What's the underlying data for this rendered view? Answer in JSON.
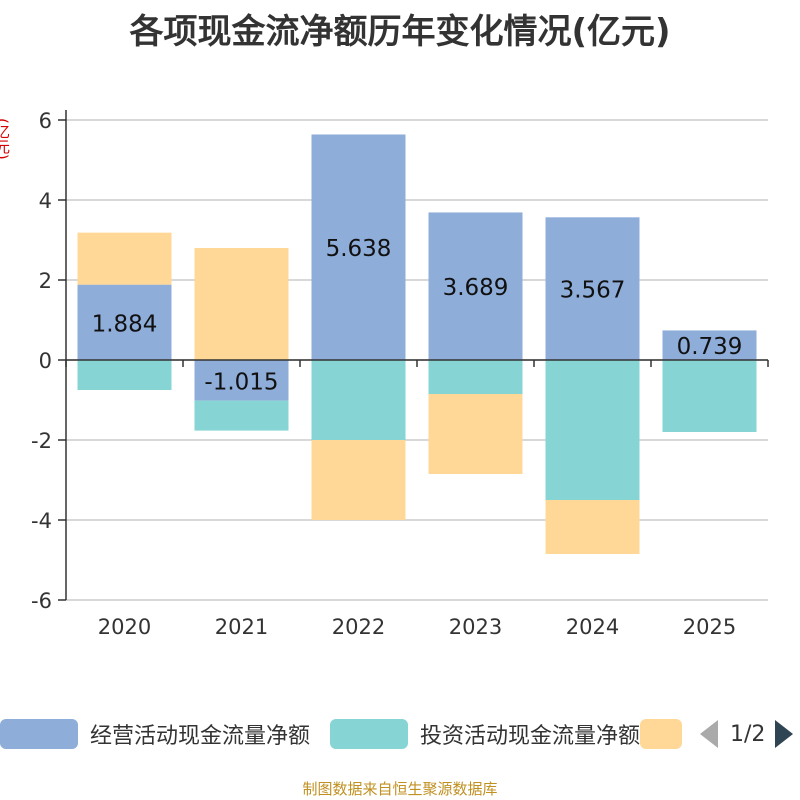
{
  "title": "各项现金流净额历年变化情况(亿元)",
  "unit_label": "(亿元)",
  "footer": "制图数据来自恒生聚源数据库",
  "legend": {
    "items": [
      {
        "name": "经营活动现金流量净额",
        "color": "#8eadd9"
      },
      {
        "name": "投资活动现金流量净额",
        "color": "#86d4d4"
      },
      {
        "name": "",
        "color": "#ffd898"
      }
    ],
    "page": "1/2"
  },
  "chart_data": {
    "type": "bar",
    "stacked": true,
    "categories": [
      "2020",
      "2021",
      "2022",
      "2023",
      "2024",
      "2025"
    ],
    "ylim": [
      -6,
      6
    ],
    "yticks": [
      6,
      4,
      2,
      0,
      -2,
      -4,
      -6
    ],
    "series": [
      {
        "name": "经营活动现金流量净额",
        "color": "#8eadd9",
        "values": [
          1.884,
          -1.015,
          5.638,
          3.689,
          3.567,
          0.739
        ],
        "labels": [
          "1.884",
          "-1.015",
          "5.638",
          "3.689",
          "3.567",
          "0.739"
        ]
      },
      {
        "name": "投资活动现金流量净额",
        "color": "#86d4d4",
        "values": [
          -0.75,
          -0.75,
          -2.0,
          -0.85,
          -3.5,
          -1.8
        ]
      },
      {
        "name": "",
        "color": "#ffd898",
        "values": [
          1.3,
          2.8,
          -2.0,
          -2.0,
          -1.35,
          0
        ]
      }
    ]
  }
}
